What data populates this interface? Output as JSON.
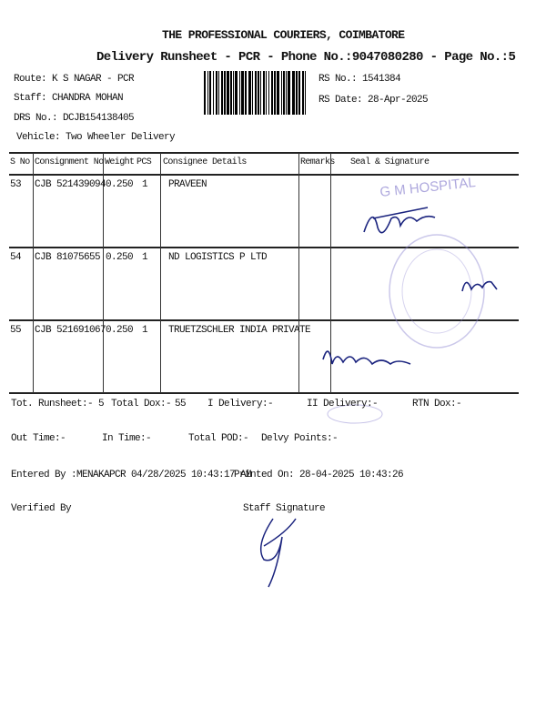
{
  "header": {
    "company": "THE PROFESSIONAL COURIERS, COIMBATORE",
    "subtitle": "Delivery Runsheet - PCR - Phone No.:9047080280 - Page No.:5",
    "route": "Route: K S NAGAR - PCR",
    "staff": "Staff: CHANDRA MOHAN",
    "drs_no": "DRS No.: DCJB154138405",
    "vehicle": "Vehicle: Two Wheeler Delivery",
    "rs_no": "RS No.: 1541384",
    "rs_date": "RS Date: 28-Apr-2025"
  },
  "table": {
    "columns": [
      "S No",
      "Consignment No",
      "Weight",
      "PCS",
      "Consignee Details",
      "Remarks",
      "Seal & Signature"
    ],
    "rows": [
      {
        "sno": "53",
        "consignment": "CJB 521439094",
        "weight": "0.250",
        "pcs": "1",
        "consignee": "PRAVEEN",
        "remarks": ""
      },
      {
        "sno": "54",
        "consignment": "CJB 81075655",
        "weight": "0.250",
        "pcs": "1",
        "consignee": "ND LOGISTICS P LTD",
        "remarks": ""
      },
      {
        "sno": "55",
        "consignment": "CJB 521691067",
        "weight": "0.250",
        "pcs": "1",
        "consignee": "TRUETZSCHLER INDIA PRIVATE",
        "remarks": ""
      }
    ],
    "stamp_text": "G M HOSPITAL"
  },
  "summary": {
    "tot_runsheet": "Tot. Runsheet:- 5",
    "total_dox": "Total Dox:-",
    "total_dox_value": "55",
    "i_delivery": "I Delivery:-",
    "ii_delivery": "II Delivery:-",
    "rtn_dox": "RTN Dox:-",
    "out_time": "Out Time:-",
    "in_time": "In Time:-",
    "total_pod": "Total POD:-",
    "delvy_points": "Delvy Points:-",
    "entered_by": "Entered By :MENAKAPCR 04/28/2025 10:43:17 AM",
    "printed_on": "Printed On: 28-04-2025 10:43:26",
    "verified_by": "Verified By",
    "staff_signature": "Staff Signature"
  },
  "colors": {
    "ink": "#111111",
    "stamp": "#6a5fc0",
    "signature": "#1a237e"
  }
}
